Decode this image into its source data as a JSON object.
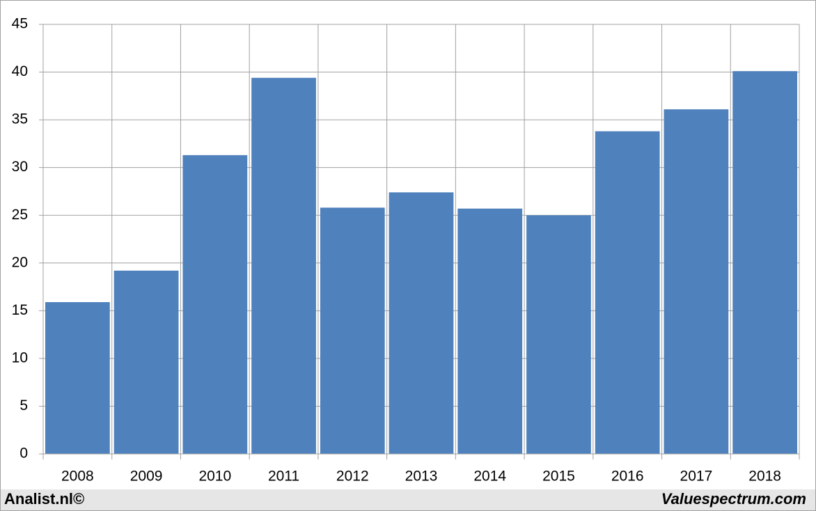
{
  "chart_data": {
    "type": "bar",
    "categories": [
      "2008",
      "2009",
      "2010",
      "2011",
      "2012",
      "2013",
      "2014",
      "2015",
      "2016",
      "2017",
      "2018"
    ],
    "values": [
      15.9,
      19.2,
      31.3,
      39.4,
      25.8,
      27.4,
      25.7,
      25.0,
      33.8,
      36.1,
      40.1
    ],
    "color": "#4f81bd",
    "ylim": [
      0,
      45
    ],
    "yticks": [
      0,
      5,
      10,
      15,
      20,
      25,
      30,
      35,
      40,
      45
    ],
    "grid": true,
    "footer_left": "Analist.nl©",
    "footer_right": "Valuespectrum.com"
  }
}
